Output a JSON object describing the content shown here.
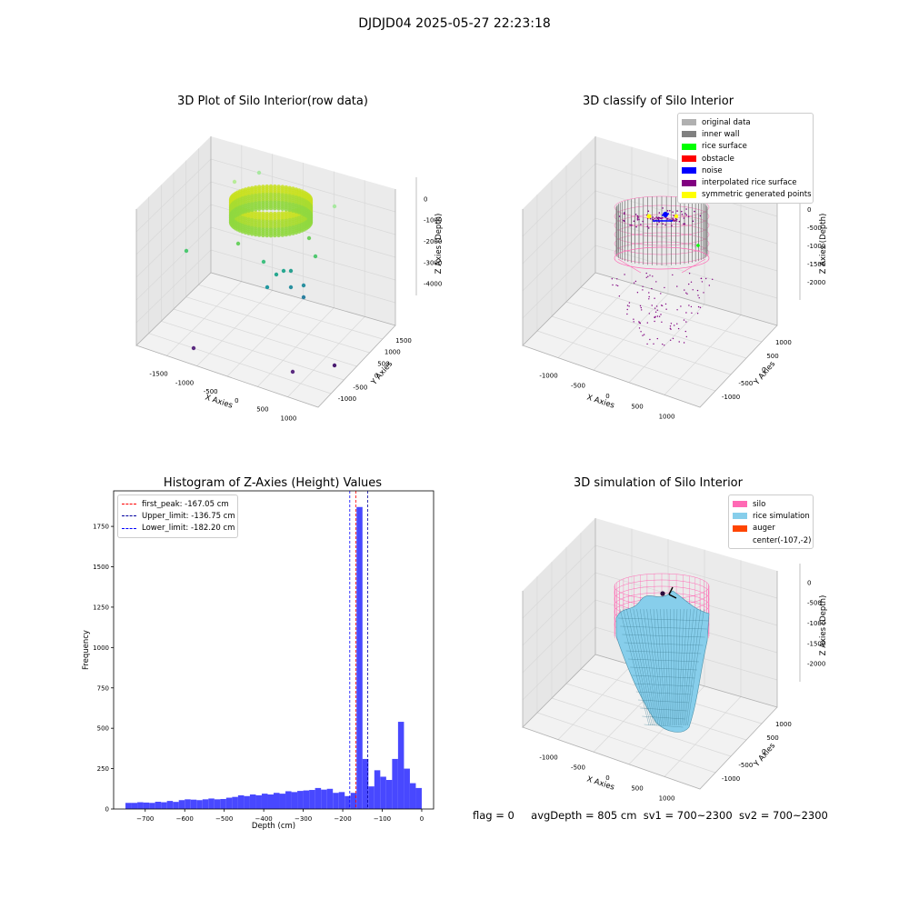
{
  "suptitle": "DJDJD04 2025-05-27 22:23:18",
  "chart_data": [
    {
      "type": "scatter3d",
      "title": "3D Plot of Silo Interior(row data)",
      "xlabel": "X Axies",
      "ylabel": "Y Axies",
      "zlabel": "Z Axies (Depth)",
      "xticks": [
        "-1500",
        "-1000",
        "-500",
        "0",
        "500",
        "1000"
      ],
      "yticks": [
        "-1000",
        "-500",
        "0",
        "500",
        "1000",
        "1500"
      ],
      "zticks": [
        "0",
        "-1000",
        "-2000",
        "-3000",
        "-4000"
      ],
      "ring": {
        "center": [
          -107,
          -2
        ],
        "radius": 620,
        "z_top": -600,
        "z_bottom": -1200
      },
      "points": [
        {
          "x": -1450,
          "y": 1350,
          "z": 0,
          "color": "#a8e8a0"
        },
        {
          "x": 900,
          "y": 1200,
          "z": -500,
          "color": "#b8ec98"
        },
        {
          "x": -1300,
          "y": -100,
          "z": -1500,
          "color": "#4cc870"
        },
        {
          "x": 600,
          "y": -200,
          "z": -1700,
          "color": "#50c870"
        },
        {
          "x": -300,
          "y": -900,
          "z": -2500,
          "color": "#28a890"
        },
        {
          "x": 200,
          "y": -700,
          "z": -2300,
          "color": "#28a890"
        },
        {
          "x": 50,
          "y": -600,
          "z": -2400,
          "color": "#20a090"
        },
        {
          "x": 400,
          "y": -500,
          "z": -2600,
          "color": "#2098a0"
        },
        {
          "x": -500,
          "y": -1000,
          "z": -2900,
          "color": "#2090a0"
        },
        {
          "x": 100,
          "y": -800,
          "z": -3200,
          "color": "#2090a0"
        },
        {
          "x": 300,
          "y": -900,
          "z": -3400,
          "color": "#2a80a0"
        },
        {
          "x": -1400,
          "y": -900,
          "z": -4400,
          "color": "#5a2a80"
        },
        {
          "x": 900,
          "y": -700,
          "z": -4400,
          "color": "#5a2a80"
        },
        {
          "x": 1300,
          "y": -500,
          "z": -4300,
          "color": "#4a1a70"
        }
      ]
    },
    {
      "type": "scatter3d",
      "title": "3D classify of Silo Interior",
      "xlabel": "X Axies",
      "ylabel": "Y Axies",
      "zlabel": "Z Axies (Depth)",
      "xticks": [
        "-1000",
        "-500",
        "0",
        "500",
        "1000"
      ],
      "yticks": [
        "-1000",
        "-500",
        "0",
        "500",
        "1000"
      ],
      "zticks": [
        "0",
        "-500",
        "-1000",
        "-1500",
        "-2000"
      ],
      "legend": [
        {
          "name": "original data",
          "color": "#b0b0b0"
        },
        {
          "name": "inner wall",
          "color": "#808080"
        },
        {
          "name": "rice surface",
          "color": "#00ff00"
        },
        {
          "name": "obstacle",
          "color": "#ff0000"
        },
        {
          "name": "noise",
          "color": "#0000ff"
        },
        {
          "name": "interpolated rice surface",
          "color": "#800080"
        },
        {
          "name": "symmetric generated points",
          "color": "#ffff00"
        }
      ]
    },
    {
      "type": "bar",
      "title": "Histogram of Z-Axies (Height) Values",
      "xlabel": "Depth (cm)",
      "ylabel": "Frequency",
      "xlim": [
        -780,
        30
      ],
      "ylim": [
        0,
        1970
      ],
      "xticks": [
        -700,
        -600,
        -500,
        -400,
        -300,
        -200,
        -100,
        0
      ],
      "yticks": [
        0,
        250,
        500,
        750,
        1000,
        1250,
        1500,
        1750
      ],
      "bin_width": 15,
      "bins": [
        {
          "x": -750,
          "value": 38
        },
        {
          "x": -735,
          "value": 38
        },
        {
          "x": -720,
          "value": 42
        },
        {
          "x": -705,
          "value": 40
        },
        {
          "x": -690,
          "value": 38
        },
        {
          "x": -675,
          "value": 45
        },
        {
          "x": -660,
          "value": 42
        },
        {
          "x": -645,
          "value": 50
        },
        {
          "x": -630,
          "value": 44
        },
        {
          "x": -615,
          "value": 55
        },
        {
          "x": -600,
          "value": 60
        },
        {
          "x": -585,
          "value": 58
        },
        {
          "x": -570,
          "value": 55
        },
        {
          "x": -555,
          "value": 60
        },
        {
          "x": -540,
          "value": 65
        },
        {
          "x": -525,
          "value": 60
        },
        {
          "x": -510,
          "value": 62
        },
        {
          "x": -495,
          "value": 70
        },
        {
          "x": -480,
          "value": 75
        },
        {
          "x": -465,
          "value": 85
        },
        {
          "x": -450,
          "value": 80
        },
        {
          "x": -435,
          "value": 90
        },
        {
          "x": -420,
          "value": 85
        },
        {
          "x": -405,
          "value": 95
        },
        {
          "x": -390,
          "value": 90
        },
        {
          "x": -375,
          "value": 100
        },
        {
          "x": -360,
          "value": 95
        },
        {
          "x": -345,
          "value": 110
        },
        {
          "x": -330,
          "value": 105
        },
        {
          "x": -315,
          "value": 112
        },
        {
          "x": -300,
          "value": 115
        },
        {
          "x": -285,
          "value": 118
        },
        {
          "x": -270,
          "value": 130
        },
        {
          "x": -255,
          "value": 120
        },
        {
          "x": -240,
          "value": 125
        },
        {
          "x": -225,
          "value": 100
        },
        {
          "x": -210,
          "value": 105
        },
        {
          "x": -195,
          "value": 80
        },
        {
          "x": -180,
          "value": 100
        },
        {
          "x": -165,
          "value": 1870
        },
        {
          "x": -150,
          "value": 310
        },
        {
          "x": -135,
          "value": 140
        },
        {
          "x": -120,
          "value": 240
        },
        {
          "x": -105,
          "value": 200
        },
        {
          "x": -90,
          "value": 180
        },
        {
          "x": -75,
          "value": 310
        },
        {
          "x": -60,
          "value": 540
        },
        {
          "x": -45,
          "value": 250
        },
        {
          "x": -30,
          "value": 160
        },
        {
          "x": -15,
          "value": 130
        }
      ],
      "vlines": [
        {
          "name": "first_peak: -167.05 cm",
          "x": -167.05,
          "color": "#ff0000"
        },
        {
          "name": "Upper_limit: -136.75 cm",
          "x": -136.75,
          "color": "#0000a0"
        },
        {
          "name": "Lower_limit: -182.20 cm",
          "x": -182.2,
          "color": "#0000ff"
        }
      ],
      "bar_color": "#4848ff"
    },
    {
      "type": "surface3d",
      "title": "3D simulation of Silo Interior",
      "xlabel": "X Axies",
      "ylabel": "Y Axies",
      "zlabel": "Z Axies (Depth)",
      "xticks": [
        "-1000",
        "-500",
        "0",
        "500",
        "1000"
      ],
      "yticks": [
        "-1000",
        "-500",
        "0",
        "500",
        "1000"
      ],
      "zticks": [
        "0",
        "-500",
        "-1000",
        "-1500",
        "-2000"
      ],
      "legend": [
        {
          "name": "silo",
          "color": "#ff69b4"
        },
        {
          "name": "rice simulation",
          "color": "#87ceeb"
        },
        {
          "name": "auger",
          "color": "#ff4500"
        },
        {
          "name": "center(-107,-2)",
          "color": ""
        }
      ]
    }
  ],
  "footer": {
    "flag": "flag = 0",
    "avg_depth": "avgDepth = 805 cm",
    "sv1": "sv1 = 700~2300",
    "sv2": "sv2 = 700~2300"
  }
}
